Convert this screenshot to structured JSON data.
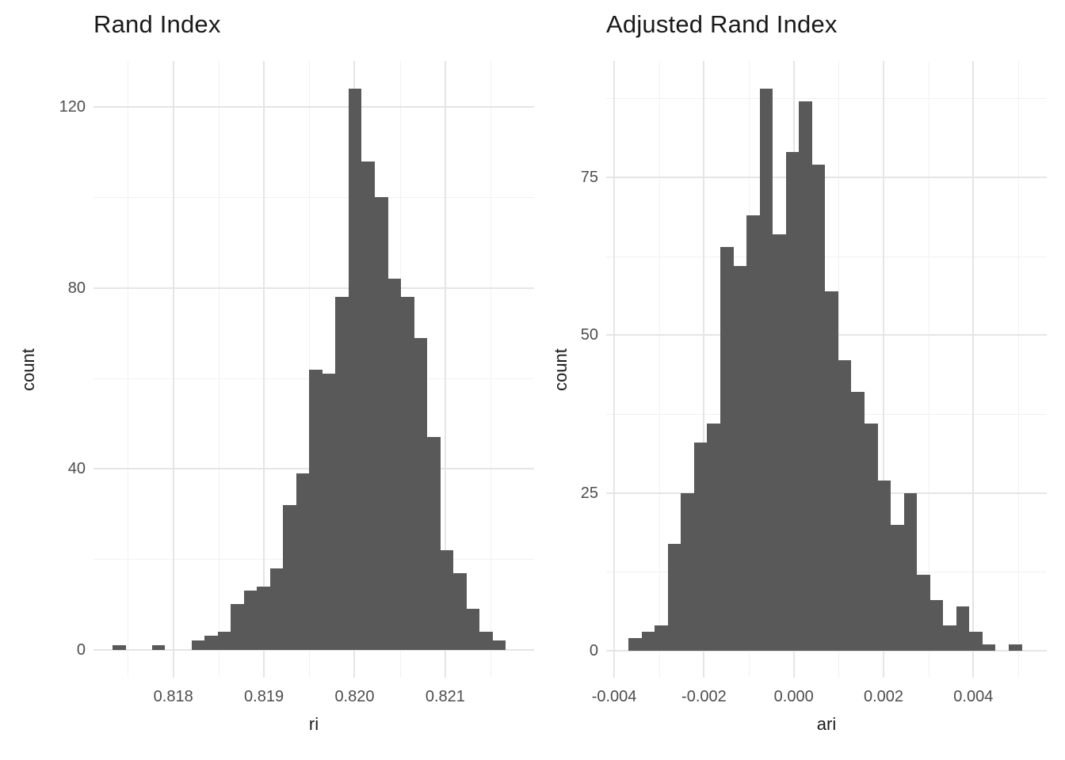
{
  "page": {
    "background": "#FFFFFF"
  },
  "colors": {
    "bar": "#595959",
    "grid_major": "#E5E5E5",
    "grid_minor": "#F1F1F1",
    "tick_label": "#4D4D4D",
    "title_text": "#1A1A1A"
  },
  "chart_data": [
    {
      "type": "bar",
      "variant": "histogram",
      "title": "Rand Index",
      "xlabel": "ri",
      "ylabel": "count",
      "legend": false,
      "grid": true,
      "bar_color": "#595959",
      "bins": {
        "start": 0.817333,
        "width": 0.0001445
      },
      "counts": [
        1,
        0,
        0,
        1,
        0,
        0,
        2,
        3,
        4,
        10,
        13,
        14,
        18,
        32,
        39,
        62,
        61,
        78,
        124,
        108,
        100,
        82,
        78,
        69,
        47,
        22,
        17,
        9,
        4,
        2
      ],
      "total_n": 1000,
      "xlim": [
        0.81712,
        0.82198
      ],
      "ylim": [
        -6.2,
        130.2
      ],
      "x_ticks": {
        "values": [
          0.818,
          0.819,
          0.82,
          0.821
        ],
        "labels": [
          "0.818",
          "0.819",
          "0.820",
          "0.821"
        ],
        "minor": [
          0.8175,
          0.8185,
          0.8195,
          0.8205,
          0.8215
        ]
      },
      "y_ticks": {
        "values": [
          0,
          40,
          80,
          120
        ],
        "labels": [
          "0",
          "40",
          "80",
          "120"
        ],
        "minor": [
          20,
          60,
          100
        ]
      }
    },
    {
      "type": "bar",
      "variant": "histogram",
      "title": "Adjusted Rand Index",
      "xlabel": "ari",
      "ylabel": "count",
      "legend": false,
      "grid": true,
      "bar_color": "#595959",
      "bins": {
        "start": -0.00368,
        "width": 0.000292
      },
      "counts": [
        2,
        3,
        4,
        17,
        25,
        33,
        36,
        64,
        61,
        69,
        89,
        66,
        79,
        87,
        77,
        57,
        46,
        41,
        36,
        27,
        20,
        25,
        12,
        8,
        4,
        7,
        3,
        1,
        0,
        1
      ],
      "total_n": 1000,
      "xlim": [
        -0.004178,
        0.005636
      ],
      "ylim": [
        -4.25,
        93.45
      ],
      "x_ticks": {
        "values": [
          -0.004,
          -0.002,
          0,
          0.002,
          0.004
        ],
        "labels": [
          "-0.004",
          "-0.002",
          "0.000",
          "0.002",
          "0.004"
        ],
        "minor": [
          -0.003,
          -0.001,
          0.001,
          0.003,
          0.005
        ]
      },
      "y_ticks": {
        "values": [
          0,
          25,
          50,
          75
        ],
        "labels": [
          "0",
          "25",
          "50",
          "75"
        ],
        "minor": [
          12.5,
          37.5,
          62.5,
          87.5
        ]
      }
    }
  ]
}
